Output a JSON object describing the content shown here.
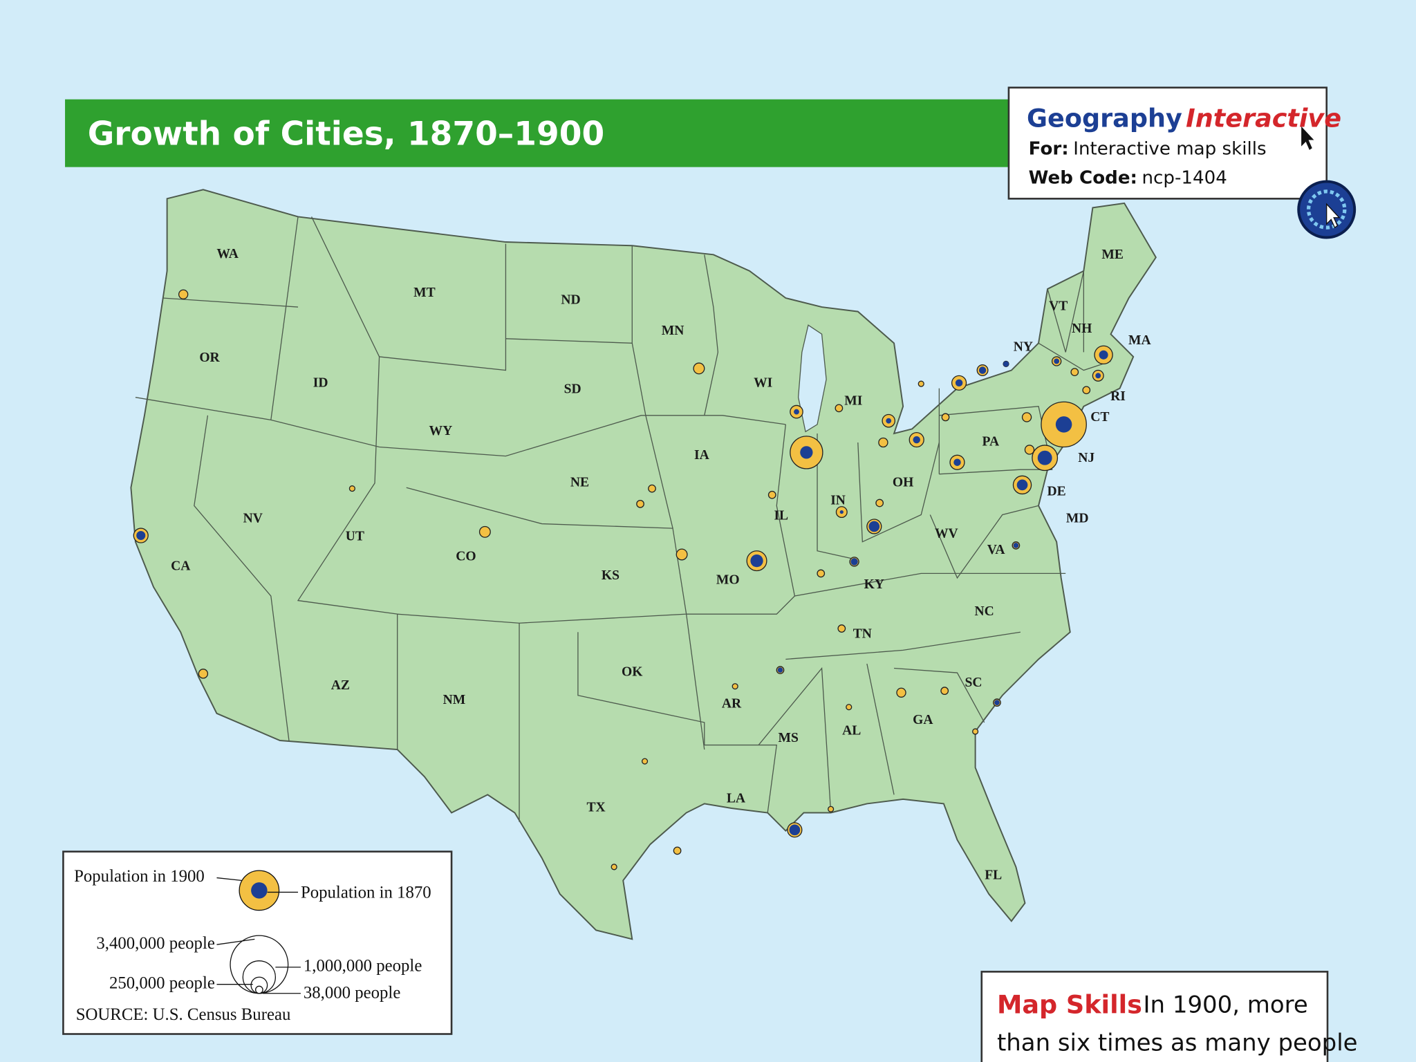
{
  "header": {
    "title": "Growth of Cities, 1870–1900"
  },
  "web_box": {
    "brand_1": "Geography",
    "brand_2": "Interactive",
    "for_label": "For:",
    "for_text": "Interactive map skills",
    "code_label": "Web Code:",
    "code_text": "ncp-1404"
  },
  "map": {
    "state_labels": [
      "WA",
      "MT",
      "ND",
      "MN",
      "OR",
      "ID",
      "SD",
      "WI",
      "MI",
      "NY",
      "VT",
      "NH",
      "ME",
      "MA",
      "RI",
      "CT",
      "NJ",
      "DE",
      "MD",
      "PA",
      "OH",
      "WY",
      "IA",
      "NE",
      "IL",
      "IN",
      "NV",
      "UT",
      "CO",
      "CA",
      "KS",
      "MO",
      "KY",
      "WV",
      "VA",
      "NC",
      "TN",
      "OK",
      "AR",
      "SC",
      "AZ",
      "NM",
      "MS",
      "AL",
      "GA",
      "TX",
      "LA",
      "FL"
    ]
  },
  "legend": {
    "population_1900": "Population in 1900",
    "population_1870": "Population in 1870",
    "size_3400000": "3,400,000 people",
    "size_1000000": "1,000,000 people",
    "size_250000": "250,000 people",
    "size_38000": "38,000 people",
    "source": "SOURCE: U.S. Census Bureau"
  },
  "map_skills": {
    "heading": "Map Skills",
    "lines": [
      "In 1900, more",
      "than six times as many people"
    ]
  }
}
